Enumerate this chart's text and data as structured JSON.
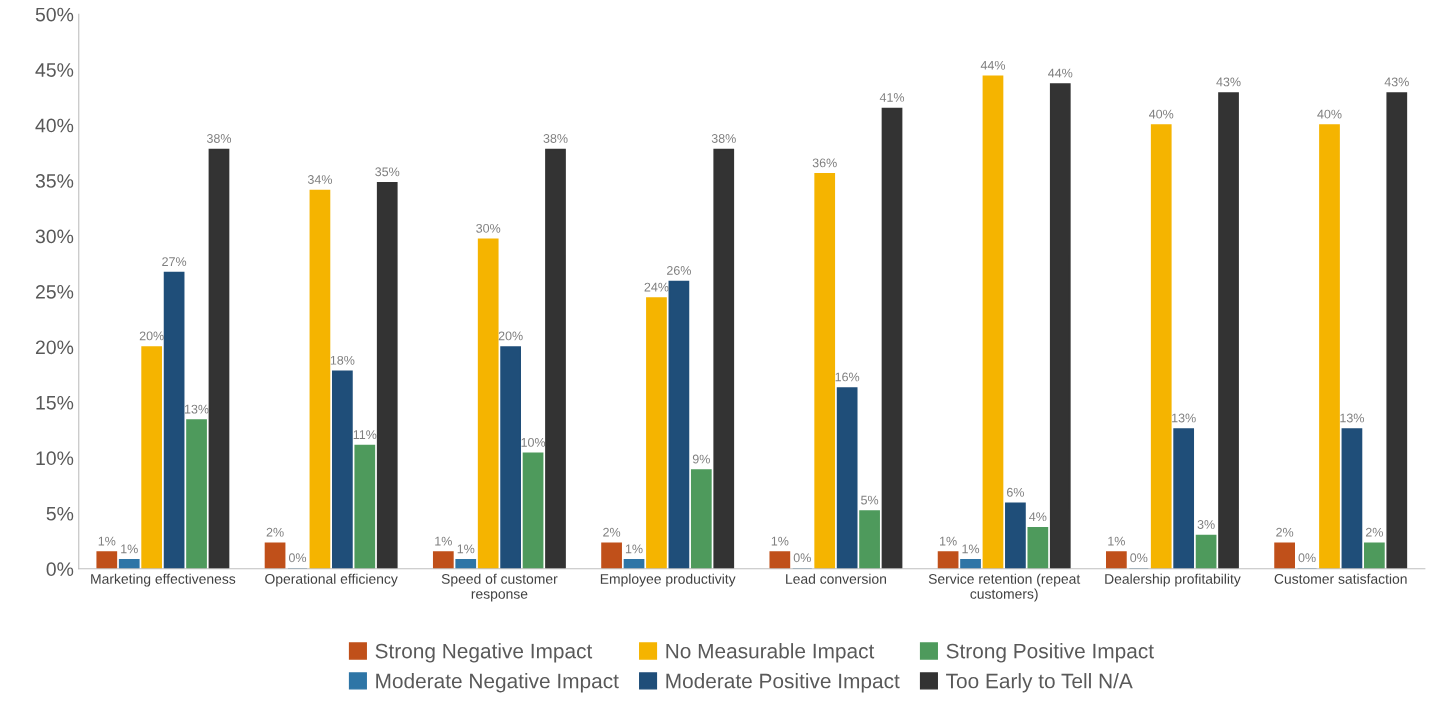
{
  "chart_data": {
    "type": "bar",
    "categories": [
      "Marketing effectiveness",
      "Operational efficiency",
      "Speed of customer\nresponse",
      "Employee productivity",
      "Lead conversion",
      "Service retention (repeat\ncustomers)",
      "Dealership profitability",
      "Customer satisfaction"
    ],
    "series": [
      {
        "name": "Strong Negative Impact",
        "color": "#c0501a",
        "values": [
          1.5,
          2.3,
          1.5,
          2.3,
          1.5,
          1.5,
          1.5,
          2.3
        ],
        "value_labels": [
          "1%",
          "2%",
          "1%",
          "2%",
          "1%",
          "1%",
          "1%",
          "2%"
        ]
      },
      {
        "name": "Moderate Negative Impact",
        "color": "#2e75a6",
        "values": [
          0.8,
          0,
          0.8,
          0.8,
          0,
          0.8,
          0,
          0
        ],
        "value_labels": [
          "1%",
          "0%",
          "1%",
          "1%",
          "0%",
          "1%",
          "0%",
          "0%"
        ]
      },
      {
        "name": "No Measurable Impact",
        "color": "#f5b400",
        "values": [
          20.0,
          34.1,
          29.7,
          24.4,
          35.6,
          44.4,
          40.0,
          40.0
        ],
        "value_labels": [
          "20%",
          "34%",
          "30%",
          "24%",
          "36%",
          "44%",
          "40%",
          "40%"
        ]
      },
      {
        "name": "Moderate Positive Impact",
        "color": "#1f4e79",
        "values": [
          26.7,
          17.8,
          20.0,
          25.9,
          16.3,
          5.9,
          12.6,
          12.6
        ],
        "value_labels": [
          "27%",
          "18%",
          "20%",
          "26%",
          "16%",
          "6%",
          "13%",
          "13%"
        ]
      },
      {
        "name": "Strong Positive Impact",
        "color": "#4e9a5c",
        "values": [
          13.4,
          11.1,
          10.4,
          8.9,
          5.2,
          3.7,
          3.0,
          2.3
        ],
        "value_labels": [
          "13%",
          "11%",
          "10%",
          "9%",
          "5%",
          "4%",
          "3%",
          "2%"
        ]
      },
      {
        "name": "Too Early to Tell N/A",
        "color": "#333333",
        "values": [
          37.8,
          34.8,
          37.8,
          37.8,
          41.5,
          43.7,
          42.9,
          42.9
        ],
        "value_labels": [
          "38%",
          "35%",
          "38%",
          "38%",
          "41%",
          "44%",
          "43%",
          "43%"
        ]
      }
    ],
    "ylim": [
      0,
      50
    ],
    "yticks": [
      {
        "value": 0,
        "label": "0%"
      },
      {
        "value": 5,
        "label": "5%"
      },
      {
        "value": 10,
        "label": "10%"
      },
      {
        "value": 15,
        "label": "15%"
      },
      {
        "value": 20,
        "label": "20%"
      },
      {
        "value": 25,
        "label": "25%"
      },
      {
        "value": 30,
        "label": "30%"
      },
      {
        "value": 35,
        "label": "35%"
      },
      {
        "value": 40,
        "label": "40%"
      },
      {
        "value": 45,
        "label": "45%"
      },
      {
        "value": 50,
        "label": "50%"
      }
    ],
    "grid": false,
    "legend": "bottom"
  }
}
